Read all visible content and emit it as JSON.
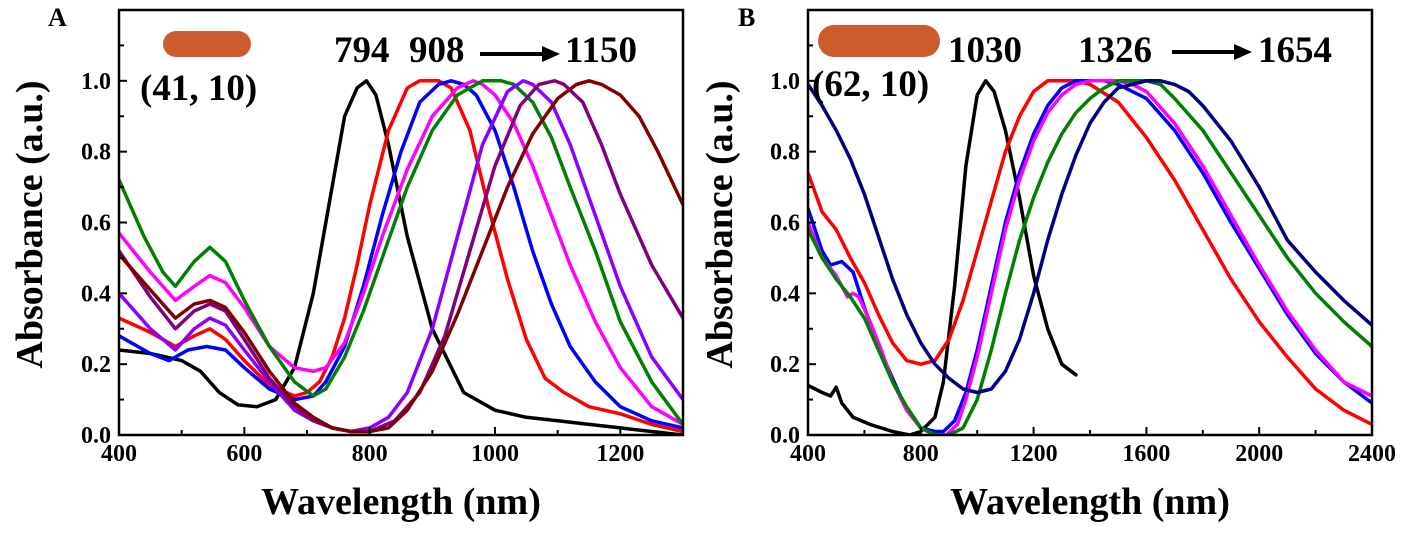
{
  "chart_data": [
    {
      "panel_label": "A",
      "type": "line",
      "xlabel": "Wavelength (nm)",
      "ylabel": "Absorbance (a.u.)",
      "xlim": [
        400,
        1300
      ],
      "ylim": [
        0,
        1.2
      ],
      "xticks": [
        400,
        600,
        800,
        1000,
        1200
      ],
      "yticks": [
        0.0,
        0.2,
        0.4,
        0.6,
        0.8,
        1.0
      ],
      "xtick_labels": [
        "400",
        "600",
        "800",
        "1000",
        "1200"
      ],
      "ytick_labels": [
        "0.0",
        "0.2",
        "0.4",
        "0.6",
        "0.8",
        "1.0"
      ],
      "grid": false,
      "legend": "none",
      "annotations": {
        "rod_label": "(41, 10)",
        "peak_first": "794",
        "peak_second": "908",
        "peak_last": "1150",
        "rod_color": "#cd5c2d"
      },
      "series": [
        {
          "color": "#000000",
          "x": [
            400,
            450,
            500,
            530,
            560,
            590,
            620,
            650,
            680,
            710,
            740,
            760,
            780,
            795,
            810,
            830,
            860,
            900,
            950,
            1000,
            1050,
            1100,
            1150,
            1200,
            1250,
            1300
          ],
          "y": [
            0.24,
            0.23,
            0.21,
            0.18,
            0.12,
            0.085,
            0.08,
            0.1,
            0.19,
            0.4,
            0.7,
            0.9,
            0.98,
            1.0,
            0.96,
            0.82,
            0.56,
            0.3,
            0.12,
            0.07,
            0.05,
            0.04,
            0.03,
            0.02,
            0.01,
            0.0
          ]
        },
        {
          "color": "#ff0000",
          "x": [
            400,
            450,
            490,
            520,
            545,
            570,
            600,
            640,
            680,
            700,
            720,
            740,
            760,
            780,
            800,
            830,
            860,
            880,
            900,
            910,
            930,
            960,
            990,
            1020,
            1050,
            1080,
            1110,
            1150,
            1200,
            1250,
            1300
          ],
          "y": [
            0.33,
            0.29,
            0.25,
            0.28,
            0.3,
            0.27,
            0.21,
            0.14,
            0.11,
            0.12,
            0.15,
            0.22,
            0.33,
            0.48,
            0.65,
            0.86,
            0.98,
            1.0,
            1.0,
            1.0,
            0.98,
            0.86,
            0.64,
            0.44,
            0.27,
            0.16,
            0.12,
            0.08,
            0.06,
            0.03,
            0.01
          ]
        },
        {
          "color": "#0000ff",
          "x": [
            400,
            450,
            480,
            510,
            540,
            570,
            600,
            640,
            680,
            710,
            730,
            760,
            790,
            820,
            850,
            880,
            910,
            930,
            950,
            970,
            1000,
            1030,
            1060,
            1090,
            1120,
            1160,
            1200,
            1250,
            1300
          ],
          "y": [
            0.28,
            0.23,
            0.21,
            0.24,
            0.25,
            0.24,
            0.19,
            0.13,
            0.1,
            0.11,
            0.15,
            0.25,
            0.42,
            0.62,
            0.8,
            0.94,
            0.99,
            1.0,
            0.99,
            0.96,
            0.86,
            0.7,
            0.52,
            0.37,
            0.25,
            0.15,
            0.08,
            0.04,
            0.02
          ]
        },
        {
          "color": "#ff00ff",
          "x": [
            400,
            450,
            490,
            520,
            545,
            570,
            600,
            640,
            680,
            710,
            730,
            760,
            790,
            820,
            860,
            900,
            940,
            965,
            980,
            1000,
            1030,
            1060,
            1090,
            1120,
            1160,
            1200,
            1250,
            1300
          ],
          "y": [
            0.57,
            0.46,
            0.38,
            0.42,
            0.45,
            0.43,
            0.36,
            0.25,
            0.19,
            0.18,
            0.19,
            0.26,
            0.4,
            0.56,
            0.75,
            0.9,
            0.98,
            1.0,
            0.99,
            0.96,
            0.88,
            0.76,
            0.62,
            0.48,
            0.32,
            0.19,
            0.08,
            0.03
          ]
        },
        {
          "color": "#008000",
          "x": [
            400,
            440,
            470,
            490,
            520,
            545,
            570,
            600,
            640,
            680,
            710,
            730,
            760,
            790,
            820,
            860,
            900,
            940,
            980,
            1010,
            1030,
            1060,
            1090,
            1120,
            1160,
            1200,
            1250,
            1300
          ],
          "y": [
            0.72,
            0.56,
            0.46,
            0.42,
            0.49,
            0.53,
            0.49,
            0.38,
            0.25,
            0.15,
            0.11,
            0.13,
            0.22,
            0.35,
            0.5,
            0.7,
            0.86,
            0.96,
            1.0,
            1.0,
            0.99,
            0.94,
            0.84,
            0.7,
            0.52,
            0.32,
            0.15,
            0.03
          ]
        },
        {
          "color": "#8b00ff",
          "x": [
            400,
            450,
            490,
            520,
            545,
            570,
            600,
            640,
            680,
            710,
            740,
            770,
            800,
            830,
            860,
            900,
            940,
            980,
            1020,
            1045,
            1060,
            1090,
            1120,
            1160,
            1200,
            1250,
            1300
          ],
          "y": [
            0.4,
            0.3,
            0.24,
            0.3,
            0.33,
            0.31,
            0.24,
            0.15,
            0.07,
            0.04,
            0.02,
            0.01,
            0.02,
            0.05,
            0.12,
            0.3,
            0.56,
            0.82,
            0.97,
            1.0,
            0.99,
            0.94,
            0.82,
            0.62,
            0.42,
            0.22,
            0.1
          ]
        },
        {
          "color": "#800080",
          "x": [
            400,
            450,
            490,
            520,
            545,
            570,
            600,
            640,
            680,
            710,
            740,
            770,
            800,
            840,
            880,
            920,
            960,
            1000,
            1040,
            1070,
            1095,
            1110,
            1140,
            1170,
            1200,
            1250,
            1300
          ],
          "y": [
            0.52,
            0.39,
            0.3,
            0.35,
            0.37,
            0.35,
            0.27,
            0.16,
            0.08,
            0.04,
            0.02,
            0.01,
            0.01,
            0.04,
            0.12,
            0.28,
            0.52,
            0.76,
            0.93,
            0.99,
            1.0,
            0.99,
            0.94,
            0.82,
            0.68,
            0.48,
            0.33
          ]
        },
        {
          "color": "#800000",
          "x": [
            400,
            450,
            490,
            520,
            545,
            570,
            600,
            640,
            680,
            710,
            740,
            770,
            800,
            830,
            860,
            900,
            940,
            980,
            1020,
            1060,
            1100,
            1130,
            1150,
            1170,
            1200,
            1230,
            1260,
            1300
          ],
          "y": [
            0.51,
            0.41,
            0.33,
            0.37,
            0.38,
            0.36,
            0.29,
            0.18,
            0.09,
            0.05,
            0.02,
            0.01,
            0.01,
            0.02,
            0.07,
            0.18,
            0.34,
            0.52,
            0.7,
            0.85,
            0.95,
            0.99,
            1.0,
            0.99,
            0.96,
            0.9,
            0.8,
            0.65
          ]
        }
      ]
    },
    {
      "panel_label": "B",
      "type": "line",
      "xlabel": "Wavelength (nm)",
      "ylabel": "Absorbance (a.u.)",
      "xlim": [
        400,
        2400
      ],
      "ylim": [
        0,
        1.2
      ],
      "xticks": [
        400,
        800,
        1200,
        1600,
        2000,
        2400
      ],
      "yticks": [
        0.0,
        0.2,
        0.4,
        0.6,
        0.8,
        1.0
      ],
      "xtick_labels": [
        "400",
        "800",
        "1200",
        "1600",
        "2000",
        "2400"
      ],
      "ytick_labels": [
        "0.0",
        "0.2",
        "0.4",
        "0.6",
        "0.8",
        "1.0"
      ],
      "grid": false,
      "legend": "none",
      "annotations": {
        "rod_label": "(62, 10)",
        "peak_first": "1030",
        "peak_second": "1326",
        "peak_last": "1654",
        "rod_color": "#cd5c2d"
      },
      "series": [
        {
          "color": "#000000",
          "x": [
            400,
            450,
            480,
            500,
            520,
            560,
            620,
            700,
            760,
            800,
            850,
            880,
            920,
            960,
            1000,
            1030,
            1060,
            1100,
            1150,
            1200,
            1250,
            1300,
            1350
          ],
          "y": [
            0.14,
            0.12,
            0.11,
            0.135,
            0.09,
            0.05,
            0.03,
            0.01,
            0.0,
            0.01,
            0.05,
            0.15,
            0.42,
            0.76,
            0.96,
            1.0,
            0.97,
            0.86,
            0.67,
            0.45,
            0.3,
            0.2,
            0.17
          ]
        },
        {
          "color": "#ff0000",
          "x": [
            400,
            450,
            500,
            550,
            600,
            650,
            700,
            750,
            800,
            850,
            900,
            950,
            1000,
            1050,
            1100,
            1150,
            1200,
            1250,
            1300,
            1350,
            1400,
            1500,
            1600,
            1700,
            1800,
            1900,
            2000,
            2100,
            2200,
            2300,
            2400
          ],
          "y": [
            0.74,
            0.63,
            0.58,
            0.5,
            0.43,
            0.34,
            0.26,
            0.21,
            0.2,
            0.21,
            0.27,
            0.38,
            0.52,
            0.66,
            0.8,
            0.9,
            0.97,
            1.0,
            1.0,
            1.0,
            0.99,
            0.94,
            0.84,
            0.72,
            0.58,
            0.44,
            0.32,
            0.22,
            0.13,
            0.07,
            0.03
          ]
        },
        {
          "color": "#0000ff",
          "x": [
            400,
            450,
            480,
            520,
            560,
            600,
            650,
            700,
            750,
            800,
            850,
            880,
            920,
            960,
            1000,
            1050,
            1100,
            1150,
            1200,
            1250,
            1300,
            1350,
            1400,
            1450,
            1500,
            1600,
            1700,
            1800,
            1900,
            2000,
            2100,
            2200,
            2300,
            2400
          ],
          "y": [
            0.64,
            0.52,
            0.48,
            0.49,
            0.46,
            0.36,
            0.25,
            0.16,
            0.07,
            0.02,
            0.01,
            0.01,
            0.04,
            0.12,
            0.24,
            0.42,
            0.6,
            0.74,
            0.85,
            0.93,
            0.98,
            1.0,
            1.0,
            1.0,
            0.99,
            0.95,
            0.86,
            0.74,
            0.6,
            0.47,
            0.34,
            0.23,
            0.15,
            0.09
          ]
        },
        {
          "color": "#ff00ff",
          "x": [
            400,
            450,
            500,
            540,
            560,
            580,
            620,
            660,
            700,
            750,
            800,
            850,
            890,
            930,
            960,
            1000,
            1050,
            1100,
            1150,
            1200,
            1250,
            1300,
            1350,
            1400,
            1450,
            1500,
            1550,
            1600,
            1700,
            1800,
            1900,
            2000,
            2100,
            2200,
            2300,
            2400
          ],
          "y": [
            0.6,
            0.5,
            0.45,
            0.39,
            0.4,
            0.39,
            0.32,
            0.24,
            0.15,
            0.07,
            0.02,
            0.0,
            0.0,
            0.03,
            0.1,
            0.22,
            0.4,
            0.58,
            0.72,
            0.83,
            0.91,
            0.96,
            0.99,
            1.0,
            1.0,
            1.0,
            0.99,
            0.97,
            0.88,
            0.76,
            0.62,
            0.48,
            0.35,
            0.24,
            0.15,
            0.11
          ]
        },
        {
          "color": "#008000",
          "x": [
            400,
            450,
            500,
            550,
            600,
            650,
            700,
            750,
            800,
            850,
            900,
            950,
            1000,
            1050,
            1100,
            1150,
            1200,
            1250,
            1300,
            1350,
            1400,
            1450,
            1500,
            1550,
            1600,
            1650,
            1700,
            1800,
            1900,
            2000,
            2100,
            2200,
            2300,
            2400
          ],
          "y": [
            0.58,
            0.5,
            0.44,
            0.39,
            0.33,
            0.24,
            0.15,
            0.08,
            0.02,
            0.0,
            0.0,
            0.02,
            0.1,
            0.24,
            0.4,
            0.55,
            0.67,
            0.77,
            0.85,
            0.91,
            0.95,
            0.98,
            1.0,
            1.0,
            1.0,
            0.99,
            0.95,
            0.86,
            0.74,
            0.62,
            0.5,
            0.4,
            0.32,
            0.25
          ]
        },
        {
          "color": "#000080",
          "x": [
            400,
            450,
            500,
            550,
            600,
            650,
            700,
            750,
            800,
            850,
            900,
            950,
            1000,
            1050,
            1100,
            1150,
            1200,
            1250,
            1300,
            1350,
            1400,
            1450,
            1500,
            1550,
            1600,
            1650,
            1700,
            1750,
            1800,
            1900,
            2000,
            2100,
            2200,
            2300,
            2400
          ],
          "y": [
            0.99,
            0.93,
            0.86,
            0.78,
            0.68,
            0.56,
            0.44,
            0.34,
            0.26,
            0.2,
            0.16,
            0.13,
            0.12,
            0.13,
            0.18,
            0.27,
            0.4,
            0.55,
            0.68,
            0.79,
            0.88,
            0.94,
            0.98,
            0.99,
            1.0,
            1.0,
            0.99,
            0.97,
            0.93,
            0.83,
            0.7,
            0.55,
            0.46,
            0.38,
            0.31
          ]
        }
      ]
    }
  ]
}
